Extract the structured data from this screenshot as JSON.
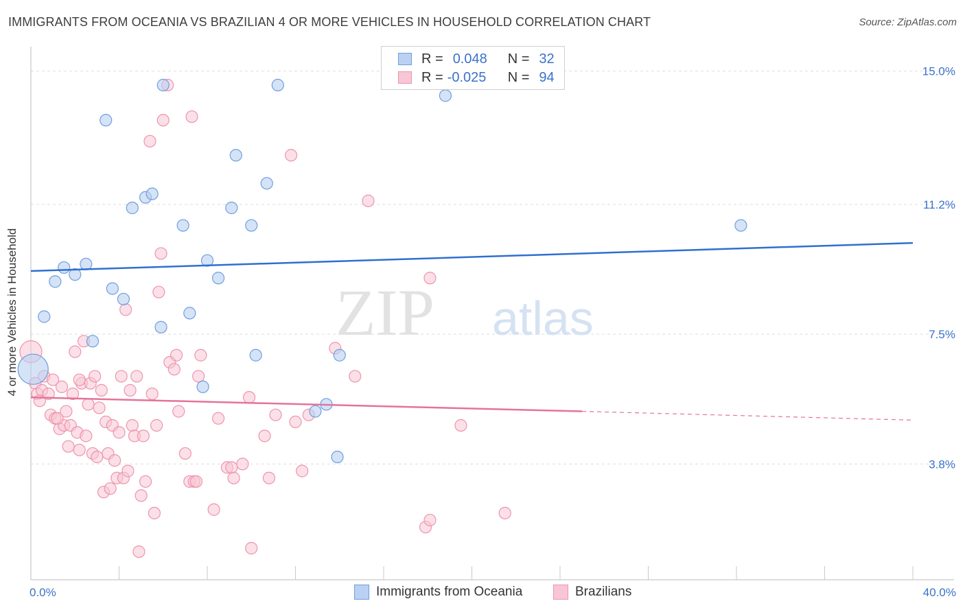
{
  "title": "IMMIGRANTS FROM OCEANIA VS BRAZILIAN 4 OR MORE VEHICLES IN HOUSEHOLD CORRELATION CHART",
  "source": "Source: ZipAtlas.com",
  "watermark": {
    "zip": "ZIP",
    "atlas": "atlas"
  },
  "legend_top": {
    "rows": [
      {
        "r_label": "R =",
        "r_value": "0.048",
        "n_label": "N =",
        "n_value": "32"
      },
      {
        "r_label": "R =",
        "r_value": "-0.025",
        "n_label": "N =",
        "n_value": "94"
      }
    ]
  },
  "legend_bottom": [
    "Immigrants from Oceania",
    "Brazilians"
  ],
  "colors": {
    "blue_fill": "#b9d1f2",
    "blue_stroke": "#6d9ee0",
    "blue_line": "#2f6fcf",
    "pink_fill": "#f8c6d4",
    "pink_stroke": "#ee93ae",
    "pink_line": "#e4739a",
    "axis_label": "#3a72c9",
    "grid": "#dddddd"
  },
  "chart_data": {
    "type": "scatter",
    "title": "IMMIGRANTS FROM OCEANIA VS BRAZILIAN 4 OR MORE VEHICLES IN HOUSEHOLD CORRELATION CHART",
    "xlabel": "",
    "ylabel": "4 or more Vehicles in Household",
    "xlim": [
      0,
      40
    ],
    "ylim": [
      0.5,
      15.5
    ],
    "x_tick_labels": [
      "0.0%",
      "40.0%"
    ],
    "y_ticks": [
      3.8,
      7.5,
      11.2,
      15.0
    ],
    "y_tick_labels": [
      "3.8%",
      "7.5%",
      "11.2%",
      "15.0%"
    ],
    "grid": true,
    "series": [
      {
        "name": "Immigrants from Oceania",
        "r": 0.048,
        "n": 32,
        "trend": {
          "x": [
            0,
            40
          ],
          "y": [
            9.3,
            10.1
          ]
        },
        "points": [
          [
            0.1,
            6.5
          ],
          [
            0.6,
            8.0
          ],
          [
            1.1,
            9.0
          ],
          [
            1.5,
            9.4
          ],
          [
            2.0,
            9.2
          ],
          [
            2.5,
            9.5
          ],
          [
            2.8,
            7.3
          ],
          [
            3.4,
            13.6
          ],
          [
            3.7,
            8.8
          ],
          [
            4.2,
            8.5
          ],
          [
            4.6,
            11.1
          ],
          [
            5.2,
            11.4
          ],
          [
            5.5,
            11.5
          ],
          [
            5.9,
            7.7
          ],
          [
            6.0,
            14.6
          ],
          [
            6.9,
            10.6
          ],
          [
            7.2,
            8.1
          ],
          [
            7.8,
            6.0
          ],
          [
            8.0,
            9.6
          ],
          [
            8.5,
            9.1
          ],
          [
            9.1,
            11.1
          ],
          [
            9.3,
            12.6
          ],
          [
            10.0,
            10.6
          ],
          [
            10.2,
            6.9
          ],
          [
            10.7,
            11.8
          ],
          [
            11.2,
            14.6
          ],
          [
            12.9,
            5.3
          ],
          [
            13.4,
            5.5
          ],
          [
            13.9,
            4.0
          ],
          [
            14.0,
            6.9
          ],
          [
            18.8,
            14.3
          ],
          [
            32.2,
            10.6
          ]
        ]
      },
      {
        "name": "Brazilians",
        "r": -0.025,
        "n": 94,
        "trend": {
          "x": [
            0,
            25
          ],
          "y": [
            5.7,
            5.3
          ]
        },
        "trend_dashed": {
          "x": [
            25,
            40
          ],
          "y": [
            5.3,
            5.05
          ]
        },
        "points": [
          [
            0.0,
            7.0
          ],
          [
            0.2,
            6.1
          ],
          [
            0.3,
            5.8
          ],
          [
            0.5,
            5.9
          ],
          [
            0.6,
            6.3
          ],
          [
            0.8,
            5.8
          ],
          [
            0.9,
            5.2
          ],
          [
            1.0,
            6.2
          ],
          [
            1.1,
            5.1
          ],
          [
            1.3,
            4.8
          ],
          [
            1.4,
            6.0
          ],
          [
            1.5,
            4.9
          ],
          [
            1.6,
            5.3
          ],
          [
            1.7,
            4.3
          ],
          [
            1.8,
            4.9
          ],
          [
            1.9,
            5.8
          ],
          [
            2.0,
            7.0
          ],
          [
            2.1,
            4.7
          ],
          [
            2.2,
            4.2
          ],
          [
            2.3,
            6.1
          ],
          [
            2.4,
            7.3
          ],
          [
            2.5,
            4.6
          ],
          [
            2.6,
            5.5
          ],
          [
            2.7,
            6.1
          ],
          [
            2.8,
            4.1
          ],
          [
            2.9,
            6.3
          ],
          [
            3.0,
            4.0
          ],
          [
            3.1,
            5.4
          ],
          [
            3.2,
            5.9
          ],
          [
            3.3,
            3.0
          ],
          [
            3.4,
            5.0
          ],
          [
            3.5,
            4.1
          ],
          [
            3.6,
            3.1
          ],
          [
            3.7,
            4.9
          ],
          [
            3.8,
            3.9
          ],
          [
            3.9,
            3.4
          ],
          [
            4.0,
            4.7
          ],
          [
            4.1,
            6.3
          ],
          [
            4.2,
            3.4
          ],
          [
            4.3,
            8.2
          ],
          [
            4.4,
            3.6
          ],
          [
            4.5,
            5.9
          ],
          [
            4.6,
            4.9
          ],
          [
            4.7,
            4.6
          ],
          [
            4.8,
            6.3
          ],
          [
            4.9,
            1.3
          ],
          [
            5.0,
            2.9
          ],
          [
            5.1,
            4.6
          ],
          [
            5.2,
            3.3
          ],
          [
            5.4,
            13.0
          ],
          [
            5.5,
            5.8
          ],
          [
            5.6,
            2.4
          ],
          [
            5.7,
            4.9
          ],
          [
            5.8,
            8.7
          ],
          [
            5.9,
            9.8
          ],
          [
            6.0,
            13.6
          ],
          [
            6.2,
            14.6
          ],
          [
            6.3,
            6.7
          ],
          [
            6.5,
            6.5
          ],
          [
            6.6,
            6.9
          ],
          [
            6.7,
            5.3
          ],
          [
            7.0,
            4.1
          ],
          [
            7.2,
            3.3
          ],
          [
            7.3,
            13.7
          ],
          [
            7.4,
            3.3
          ],
          [
            7.5,
            3.3
          ],
          [
            7.6,
            6.3
          ],
          [
            7.7,
            6.9
          ],
          [
            8.3,
            2.5
          ],
          [
            8.5,
            5.1
          ],
          [
            8.9,
            3.7
          ],
          [
            9.1,
            3.7
          ],
          [
            9.2,
            3.4
          ],
          [
            9.6,
            3.8
          ],
          [
            9.9,
            5.7
          ],
          [
            10.0,
            1.4
          ],
          [
            10.6,
            4.6
          ],
          [
            10.8,
            3.4
          ],
          [
            11.1,
            5.2
          ],
          [
            11.8,
            12.6
          ],
          [
            12.0,
            5.0
          ],
          [
            12.3,
            3.6
          ],
          [
            12.6,
            5.2
          ],
          [
            13.8,
            7.1
          ],
          [
            14.7,
            6.3
          ],
          [
            15.3,
            11.3
          ],
          [
            17.9,
            2.0
          ],
          [
            18.1,
            2.2
          ],
          [
            18.1,
            9.1
          ],
          [
            19.5,
            4.9
          ],
          [
            21.5,
            2.4
          ],
          [
            0.4,
            5.6
          ],
          [
            1.2,
            5.1
          ],
          [
            2.2,
            6.2
          ]
        ]
      }
    ]
  }
}
